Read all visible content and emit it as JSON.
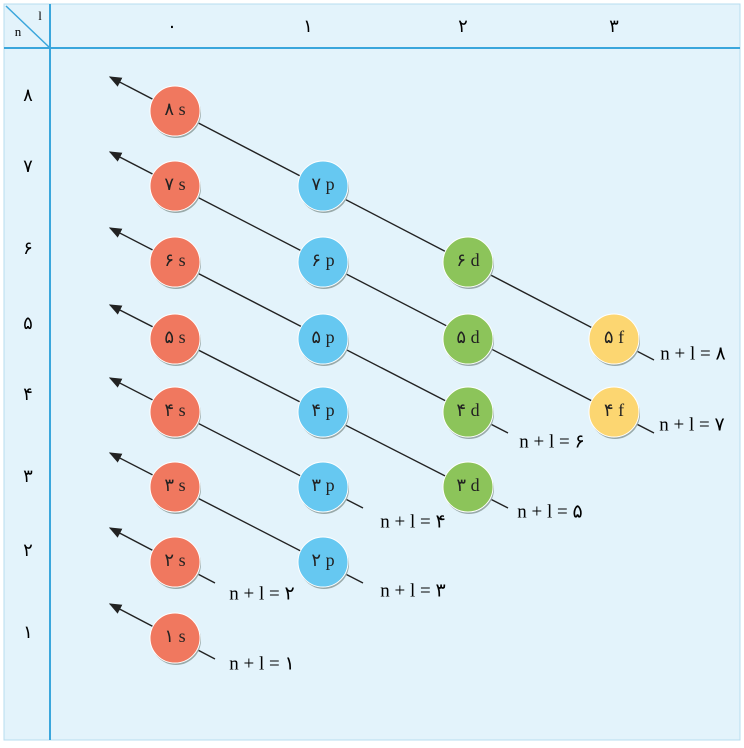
{
  "header": {
    "corner_n": "n",
    "corner_l": "l",
    "columns": [
      "۰",
      "۱",
      "۲",
      "۳"
    ]
  },
  "rows": [
    "۸",
    "۷",
    "۶",
    "۵",
    "۴",
    "۳",
    "۲",
    "۱"
  ],
  "orbitals": [
    "۸ s",
    "۷ s",
    "۷ p",
    "۶ s",
    "۶ p",
    "۶ d",
    "۵ s",
    "۵ p",
    "۵ d",
    "۵ f",
    "۴ s",
    "۴ p",
    "۴ d",
    "۴ f",
    "۳ s",
    "۳ p",
    "۳ d",
    "۲ s",
    "۲ p",
    "۱ s"
  ],
  "sums": [
    "n + l = ۱",
    "n + l = ۲",
    "n + l = ۳",
    "n + l = ۴",
    "n + l = ۵",
    "n + l = ۶",
    "n + l = ۷",
    "n + l = ۸"
  ]
}
